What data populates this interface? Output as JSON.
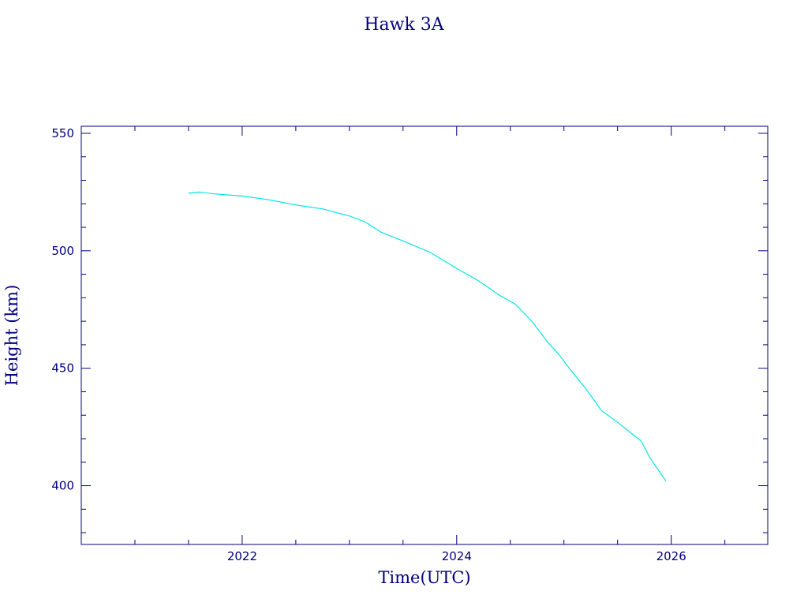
{
  "chart_data": {
    "type": "line",
    "title": "Hawk 3A",
    "xlabel": "Time(UTC)",
    "ylabel": "Height (km)",
    "xlim": [
      2020.5,
      2026.9
    ],
    "ylim": [
      375,
      553
    ],
    "x_ticks": [
      2022,
      2024,
      2026
    ],
    "x_tick_labels": [
      "2022",
      "2024",
      "2026"
    ],
    "y_ticks": [
      400,
      450,
      500,
      550
    ],
    "y_tick_labels": [
      "400",
      "450",
      "500",
      "550"
    ],
    "grid": false,
    "colors": {
      "axes": "#000080",
      "text": "#000080",
      "line": "#00e5e5"
    },
    "series": [
      {
        "x": [
          2021.5,
          2021.6,
          2021.75,
          2022.0,
          2022.25,
          2022.5,
          2022.75,
          2023.0,
          2023.15,
          2023.3,
          2023.5,
          2023.75,
          2024.0,
          2024.2,
          2024.4,
          2024.55,
          2024.7,
          2024.85,
          2024.95,
          2025.05,
          2025.2,
          2025.35,
          2025.5,
          2025.65,
          2025.72,
          2025.8,
          2025.95
        ],
        "y": [
          524.5,
          525,
          524.2,
          523.3,
          521.7,
          519.5,
          517.8,
          514.8,
          512.2,
          507.8,
          504.2,
          499.4,
          492.5,
          487.3,
          481.0,
          477.2,
          470.0,
          461.0,
          456.0,
          450.0,
          441.5,
          432.0,
          427.0,
          421.5,
          419.0,
          412.0,
          402.0
        ]
      }
    ]
  }
}
